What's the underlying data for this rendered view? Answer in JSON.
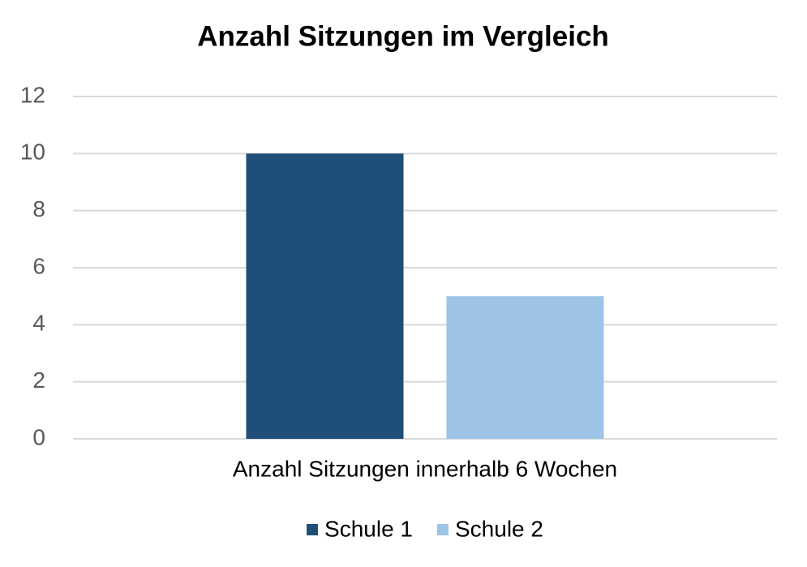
{
  "chart_data": {
    "type": "bar",
    "title": "Anzahl Sitzungen im Vergleich",
    "categories": [
      "Anzahl Sitzungen innerhalb 6 Wochen"
    ],
    "series": [
      {
        "name": "Schule 1",
        "color": "#1f4e79",
        "values": [
          10
        ]
      },
      {
        "name": "Schule 2",
        "color": "#9dc3e6",
        "values": [
          5
        ]
      }
    ],
    "ylim": [
      0,
      12
    ],
    "yticks": [
      0,
      2,
      4,
      6,
      8,
      10,
      12
    ],
    "grid": true,
    "legend": "bottom"
  }
}
